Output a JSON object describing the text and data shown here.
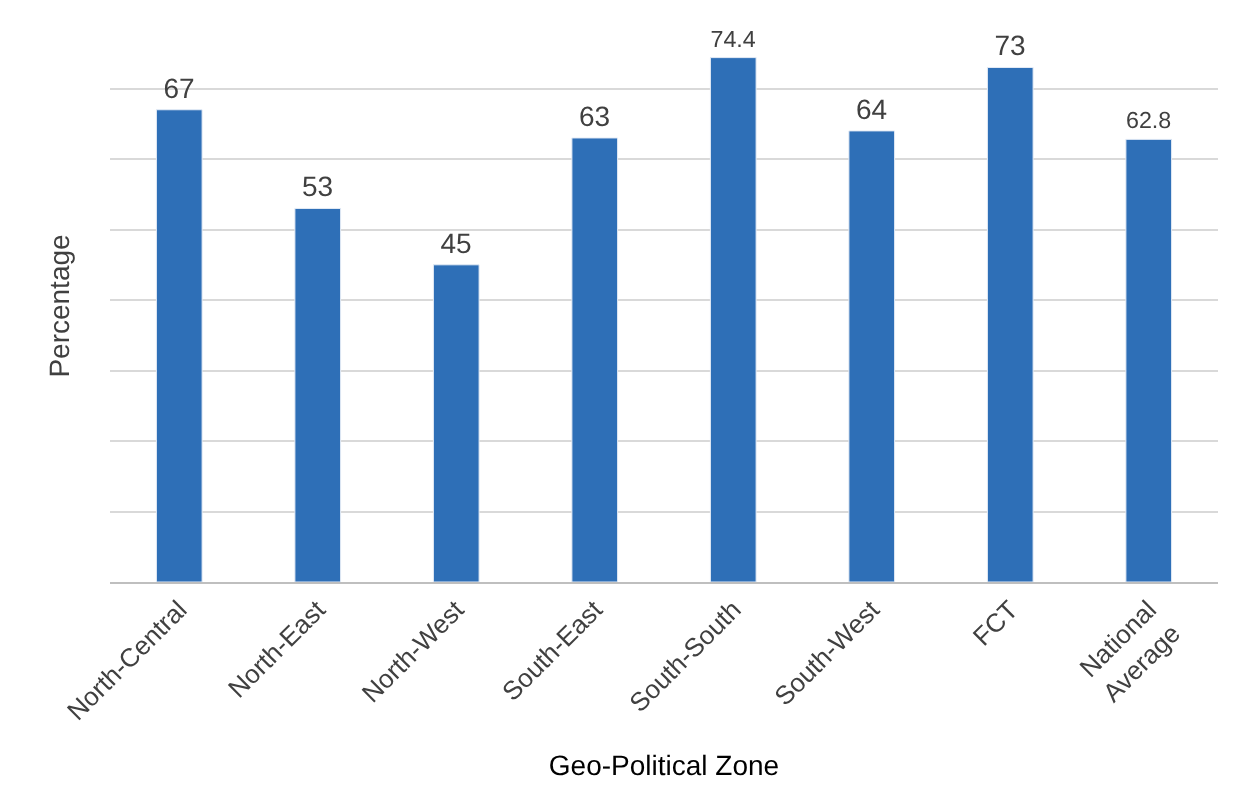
{
  "chart_data": {
    "type": "bar",
    "xlabel": "Geo-Political Zone",
    "ylabel": "Percentage",
    "categories": [
      "North-Central",
      "North-East",
      "North-West",
      "South-East",
      "South-South",
      "South-West",
      "FCT",
      "National Average"
    ],
    "values": [
      67,
      53,
      45,
      63,
      74.4,
      64,
      73,
      62.8
    ],
    "color": "#2e6fb7",
    "grid": "y",
    "data_labels": true,
    "legend": false
  }
}
